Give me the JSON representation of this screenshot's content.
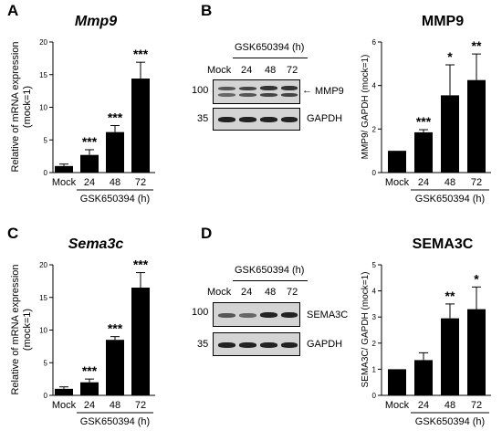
{
  "panels": {
    "A": "A",
    "B": "B",
    "C": "C",
    "D": "D"
  },
  "charts": {
    "mmp9_mrna": {
      "title": "Mmp9",
      "ylabel_line1": "Relative of mRNA expression",
      "ylabel_line2": "(mock=1)",
      "group_label": "GSK650394  (h)"
    },
    "mmp9_protein": {
      "title": "MMP9",
      "ylabel": "MMP9/ GAPDH  (mock=1)",
      "group_label": "GSK650394  (h)"
    },
    "sema3c_mrna": {
      "title": "Sema3c",
      "ylabel_line1": "Relative of mRNA expression",
      "ylabel_line2": "(mock=1)",
      "group_label": "GSK650394  (h)"
    },
    "sema3c_protein": {
      "title": "SEMA3C",
      "ylabel": "SEMA3C/ GAPDH  (mock=1)",
      "group_label": "GSK650394  (h)"
    }
  },
  "blots": {
    "B": {
      "treatment_label": "GSK650394  (h)",
      "lane_labels": [
        "Mock",
        "24",
        "48",
        "72"
      ],
      "marker_100": "100",
      "marker_35": "35",
      "target_label": "MMP9",
      "loading_label": "GAPDH"
    },
    "D": {
      "treatment_label": "GSK650394  (h)",
      "lane_labels": [
        "Mock",
        "24",
        "48",
        "72"
      ],
      "marker_100": "100",
      "marker_35": "35",
      "target_label": "SEMA3C",
      "loading_label": "GAPDH"
    }
  },
  "chart_data": [
    {
      "id": "mmp9_mrna",
      "type": "bar",
      "title": "Mmp9",
      "ylabel": "Relative of mRNA expression (mock=1)",
      "xlabel": "GSK650394 (h)",
      "categories": [
        "Mock",
        "24",
        "48",
        "72"
      ],
      "values": [
        1,
        2.7,
        6.2,
        14.4
      ],
      "errors": [
        0.3,
        0.8,
        1.0,
        2.5
      ],
      "significance": [
        "",
        "***",
        "***",
        "***"
      ],
      "ylim": [
        0,
        20
      ],
      "yticks": [
        0,
        5,
        10,
        15,
        20
      ]
    },
    {
      "id": "mmp9_protein",
      "type": "bar",
      "title": "MMP9",
      "ylabel": "MMP9/ GAPDH (mock=1)",
      "xlabel": "GSK650394 (h)",
      "categories": [
        "Mock",
        "24",
        "48",
        "72"
      ],
      "values": [
        1,
        1.85,
        3.55,
        4.25
      ],
      "errors": [
        0,
        0.12,
        1.4,
        1.2
      ],
      "significance": [
        "",
        "***",
        "*",
        "**"
      ],
      "ylim": [
        0,
        6
      ],
      "yticks": [
        0,
        2,
        4,
        6
      ]
    },
    {
      "id": "sema3c_mrna",
      "type": "bar",
      "title": "Sema3c",
      "ylabel": "Relative of mRNA expression (mock=1)",
      "xlabel": "GSK650394 (h)",
      "categories": [
        "Mock",
        "24",
        "48",
        "72"
      ],
      "values": [
        1,
        2,
        8.5,
        16.5
      ],
      "errors": [
        0.3,
        0.5,
        0.5,
        2.3
      ],
      "significance": [
        "",
        "***",
        "***",
        "***"
      ],
      "ylim": [
        0,
        20
      ],
      "yticks": [
        0,
        5,
        10,
        15,
        20
      ]
    },
    {
      "id": "sema3c_protein",
      "type": "bar",
      "title": "SEMA3C",
      "ylabel": "SEMA3C/ GAPDH (mock=1)",
      "xlabel": "GSK650394 (h)",
      "categories": [
        "Mock",
        "24",
        "48",
        "72"
      ],
      "values": [
        1,
        1.35,
        2.95,
        3.3
      ],
      "errors": [
        0,
        0.28,
        0.55,
        0.85
      ],
      "significance": [
        "",
        "",
        "**",
        "*"
      ],
      "ylim": [
        0,
        5
      ],
      "yticks": [
        0,
        1,
        2,
        3,
        4,
        5
      ]
    }
  ]
}
